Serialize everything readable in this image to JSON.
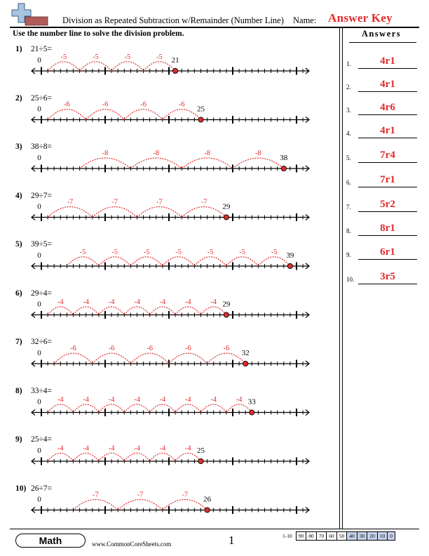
{
  "header": {
    "title": "Division as Repeated Subtraction w/Remainder (Number Line)",
    "name_label": "Name:",
    "answer_key": "Answer Key",
    "logo_icon": "plus-sign-logo-icon"
  },
  "instructions": "Use the number line to solve the division problem.",
  "colors": {
    "accent": "#e32b2b",
    "text": "#000000",
    "score_shade": "#c7d3ec"
  },
  "problems": [
    {
      "number": "1)",
      "equation": "21÷5=",
      "start_label": "0",
      "dividend": 21,
      "divisor": 5,
      "end_label": "21",
      "jump_label": "-5"
    },
    {
      "number": "2)",
      "equation": "25÷6=",
      "start_label": "0",
      "dividend": 25,
      "divisor": 6,
      "end_label": "25",
      "jump_label": "-6"
    },
    {
      "number": "3)",
      "equation": "38÷8=",
      "start_label": "0",
      "dividend": 38,
      "divisor": 8,
      "end_label": "38",
      "jump_label": "-8"
    },
    {
      "number": "4)",
      "equation": "29÷7=",
      "start_label": "0",
      "dividend": 29,
      "divisor": 7,
      "end_label": "29",
      "jump_label": "-7"
    },
    {
      "number": "5)",
      "equation": "39÷5=",
      "start_label": "0",
      "dividend": 39,
      "divisor": 5,
      "end_label": "39",
      "jump_label": "-5"
    },
    {
      "number": "6)",
      "equation": "29÷4=",
      "start_label": "0",
      "dividend": 29,
      "divisor": 4,
      "end_label": "29",
      "jump_label": "-4"
    },
    {
      "number": "7)",
      "equation": "32÷6=",
      "start_label": "0",
      "dividend": 32,
      "divisor": 6,
      "end_label": "32",
      "jump_label": "-6"
    },
    {
      "number": "8)",
      "equation": "33÷4=",
      "start_label": "0",
      "dividend": 33,
      "divisor": 4,
      "end_label": "33",
      "jump_label": "-4"
    },
    {
      "number": "9)",
      "equation": "25÷4=",
      "start_label": "0",
      "dividend": 25,
      "divisor": 4,
      "end_label": "25",
      "jump_label": "-4"
    },
    {
      "number": "10)",
      "equation": "26÷7=",
      "start_label": "0",
      "dividend": 26,
      "divisor": 7,
      "end_label": "26",
      "jump_label": "-7"
    }
  ],
  "answers": {
    "title": "Answers",
    "items": [
      {
        "number": "1.",
        "value": "4r1"
      },
      {
        "number": "2.",
        "value": "4r1"
      },
      {
        "number": "3.",
        "value": "4r6"
      },
      {
        "number": "4.",
        "value": "4r1"
      },
      {
        "number": "5.",
        "value": "7r4"
      },
      {
        "number": "6.",
        "value": "7r1"
      },
      {
        "number": "7.",
        "value": "5r2"
      },
      {
        "number": "8.",
        "value": "8r1"
      },
      {
        "number": "9.",
        "value": "6r1"
      },
      {
        "number": "10.",
        "value": "3r5"
      }
    ]
  },
  "footer": {
    "subject": "Math",
    "website": "www.CommonCoreSheets.com",
    "page_number": "1",
    "score_range": "1-10",
    "scores": [
      "90",
      "80",
      "70",
      "60",
      "50",
      "40",
      "30",
      "20",
      "10",
      "0"
    ],
    "shaded_scores": [
      "40",
      "30",
      "20",
      "10",
      "0"
    ]
  }
}
